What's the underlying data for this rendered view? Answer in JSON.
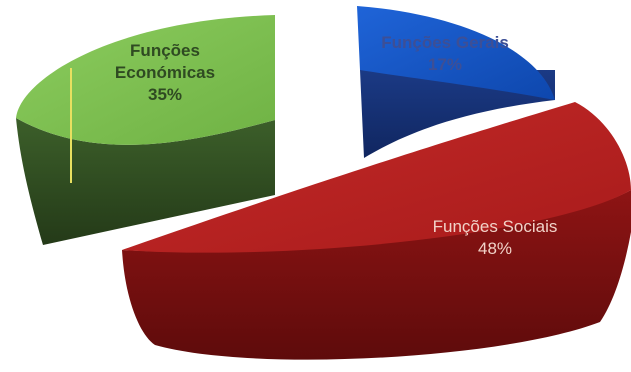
{
  "chart_data": {
    "type": "pie",
    "categories": [
      "Funções Económicas",
      "Funções Gerais",
      "Funções Sociais"
    ],
    "values": [
      35,
      17,
      48
    ],
    "value_labels": [
      "35%",
      "17%",
      "48%"
    ],
    "colors": {
      "economicas": "#7fbf52",
      "gerais": "#1556c8",
      "sociais": "#b5201f"
    }
  },
  "labels": {
    "economicas": {
      "line1": "Funções",
      "line2": "Económicas",
      "pct": "35%"
    },
    "gerais": {
      "line1": "Funções Gerais",
      "pct": "17%"
    },
    "sociais": {
      "line1": "Funções Sociais",
      "pct": "48%"
    }
  }
}
